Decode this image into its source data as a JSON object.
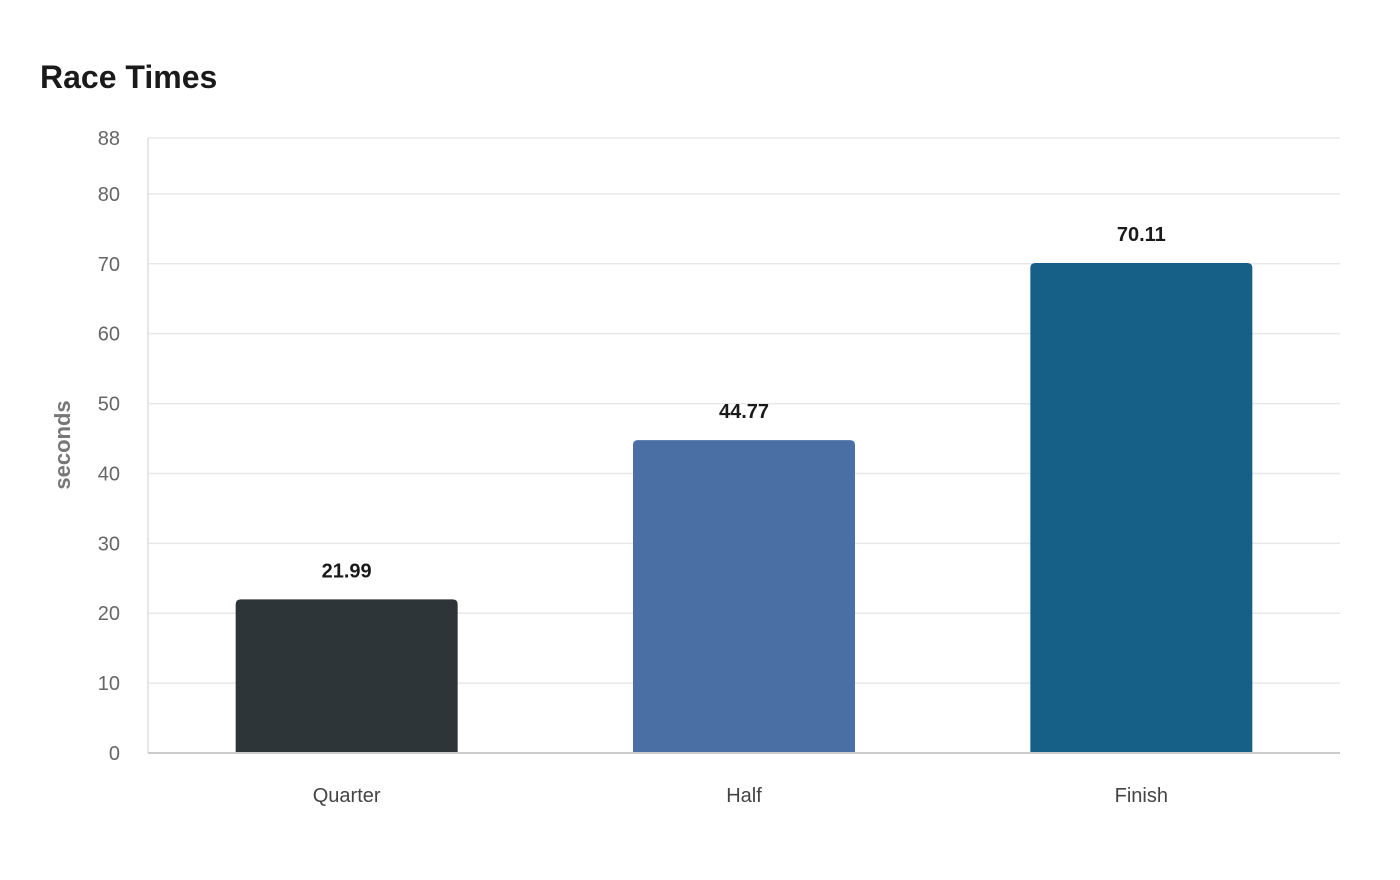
{
  "chart_data": {
    "type": "bar",
    "title": "Race Times",
    "xlabel": "",
    "ylabel": "seconds",
    "categories": [
      "Quarter",
      "Half",
      "Finish"
    ],
    "values": [
      21.99,
      44.77,
      70.11
    ],
    "value_labels": [
      "21.99",
      "44.77",
      "70.11"
    ],
    "colors": [
      "#2e3538",
      "#4a6fa5",
      "#166088"
    ],
    "ylim": [
      0,
      88
    ],
    "yticks": [
      0,
      10,
      20,
      30,
      40,
      50,
      60,
      70,
      80,
      88
    ],
    "grid": true,
    "legend": "none"
  }
}
